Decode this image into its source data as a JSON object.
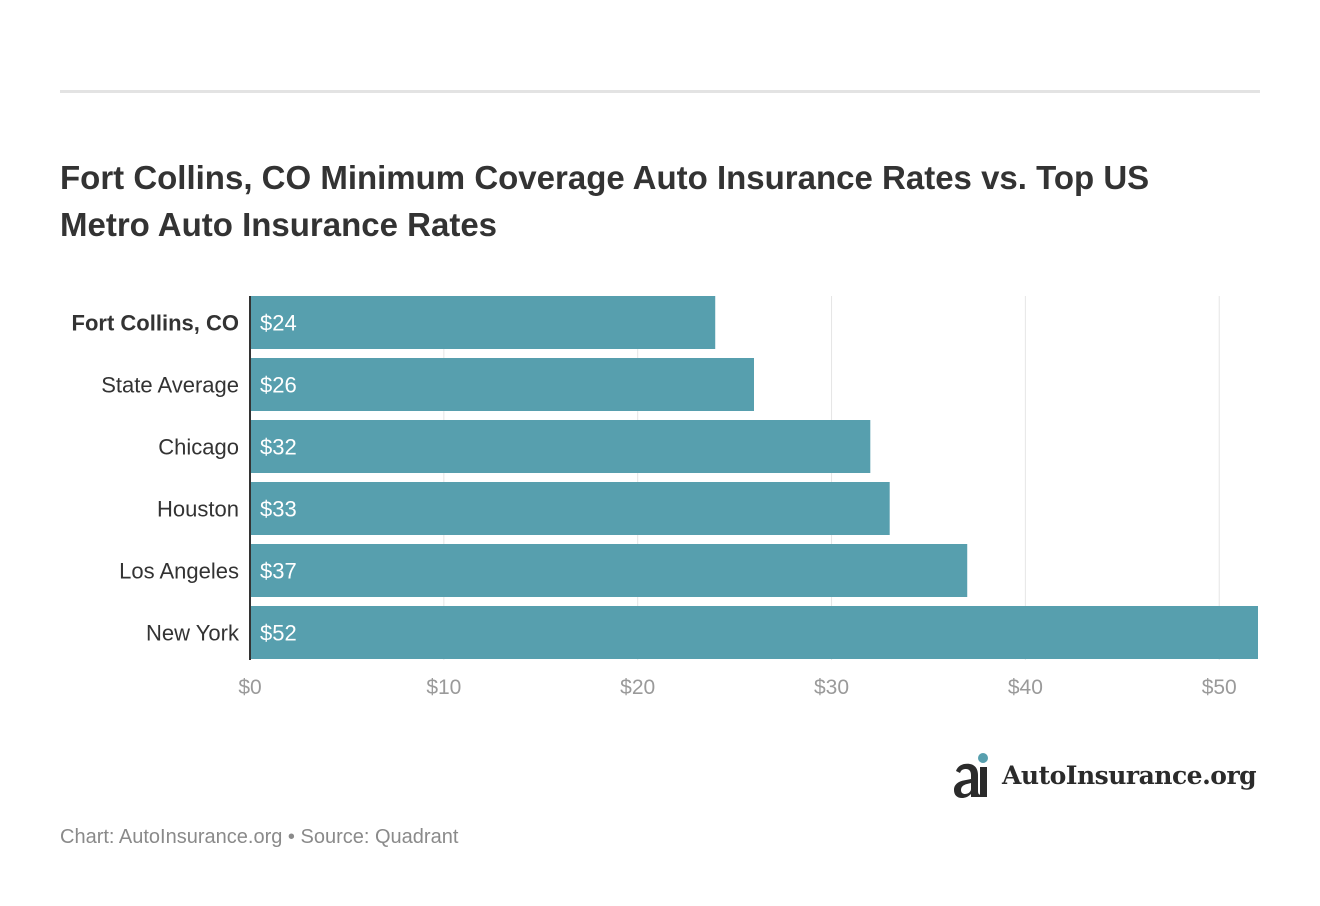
{
  "title": "Fort Collins, CO Minimum Coverage Auto Insurance Rates vs. Top US Metro Auto Insurance Rates",
  "footer": {
    "chart_credit": "Chart: AutoInsurance.org",
    "separator": "•",
    "source": "Source: Quadrant"
  },
  "logo": {
    "text": "AutoInsurance.org",
    "mark_icon": "autoinsurance-logo-icon"
  },
  "colors": {
    "bar": "#579fae",
    "grid": "#e6e6e6",
    "axis": "#333333",
    "tick_text": "#9a9a9a",
    "bar_label": "#ffffff",
    "accent_dot": "#579fae"
  },
  "chart_data": {
    "type": "bar",
    "orientation": "horizontal",
    "categories": [
      "Fort Collins, CO",
      "State Average",
      "Chicago",
      "Houston",
      "Los Angeles",
      "New York"
    ],
    "values": [
      24,
      26,
      32,
      33,
      37,
      52
    ],
    "value_labels": [
      "$24",
      "$26",
      "$32",
      "$33",
      "$37",
      "$52"
    ],
    "highlight_category": "Fort Collins, CO",
    "xlim": [
      0,
      52
    ],
    "xticks": [
      0,
      10,
      20,
      30,
      40,
      50
    ],
    "xtick_labels": [
      "$0",
      "$10",
      "$20",
      "$30",
      "$40",
      "$50"
    ],
    "grid": true,
    "title": "Fort Collins, CO Minimum Coverage Auto Insurance Rates vs. Top US Metro Auto Insurance Rates"
  }
}
